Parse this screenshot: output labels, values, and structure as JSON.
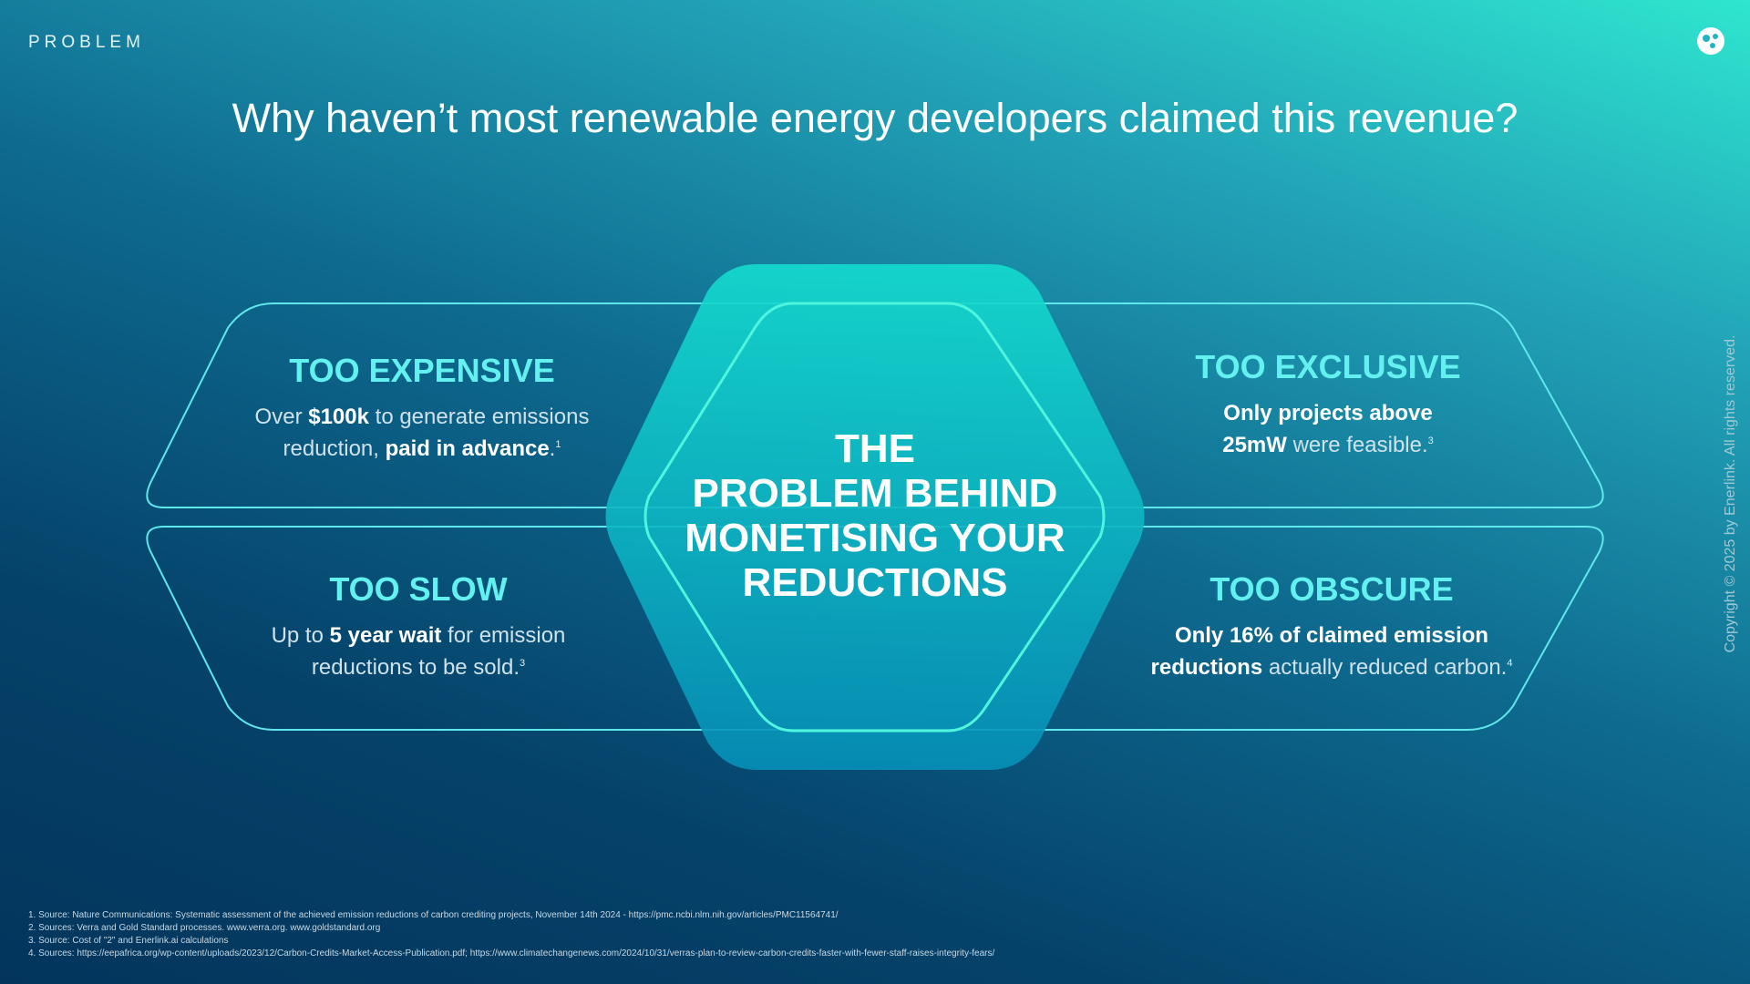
{
  "header": {
    "section": "PROBLEM",
    "title": "Why haven’t most renewable energy developers claimed this revenue?"
  },
  "center": {
    "lines": [
      "THE",
      "PROBLEM BEHIND",
      "MONETISING YOUR",
      "REDUCTIONS"
    ]
  },
  "cards": [
    {
      "title": "TOO EXPENSIVE",
      "lines": [
        [
          {
            "text": "Over ",
            "style": "light"
          },
          {
            "text": "$100k",
            "style": "bold"
          },
          {
            "text": " to generate emissions",
            "style": "light"
          }
        ],
        [
          {
            "text": "reduction, ",
            "style": "light"
          },
          {
            "text": "paid in advance",
            "style": "bold"
          },
          {
            "text": ".",
            "style": "light"
          },
          {
            "text": "1",
            "style": "sup"
          }
        ]
      ]
    },
    {
      "title": "TOO EXCLUSIVE",
      "lines": [
        [
          {
            "text": "Only projects above",
            "style": "bold"
          }
        ],
        [
          {
            "text": "25mW",
            "style": "bold"
          },
          {
            "text": " were feasible.",
            "style": "light"
          },
          {
            "text": "3",
            "style": "sup"
          }
        ]
      ]
    },
    {
      "title": "TOO SLOW",
      "lines": [
        [
          {
            "text": "Up to ",
            "style": "light"
          },
          {
            "text": "5 year wait",
            "style": "bold"
          },
          {
            "text": " for emission",
            "style": "light"
          }
        ],
        [
          {
            "text": "reductions to be sold.",
            "style": "light"
          },
          {
            "text": "3",
            "style": "sup"
          }
        ]
      ]
    },
    {
      "title": "TOO OBSCURE",
      "lines": [
        [
          {
            "text": "Only 16% of claimed emission",
            "style": "bold"
          }
        ],
        [
          {
            "text": "reductions",
            "style": "bold"
          },
          {
            "text": " actually reduced carbon.",
            "style": "light"
          },
          {
            "text": "4",
            "style": "sup"
          }
        ]
      ]
    }
  ],
  "footnotes": [
    "1. Source: Nature Communications: Systematic assessment of the achieved emission reductions of carbon crediting projects, November 14th 2024 - https://pmc.ncbi.nlm.nih.gov/articles/PMC11564741/",
    "2. Sources: Verra and Gold Standard processes. www.verra.org. www.goldstandard.org",
    "3. Source: Cost of \"2\" and Enerlink.ai calculations",
    "4. Sources: https://eepafrica.org/wp-content/uploads/2023/12/Carbon-Credits-Market-Access-Publication.pdf; https://www.climatechangenews.com/2024/10/31/verras-plan-to-review-carbon-credits-faster-with-fewer-staff-raises-integrity-fears/"
  ],
  "copyright": "Copyright © 2025 by Enerlink. All rights reserved."
}
